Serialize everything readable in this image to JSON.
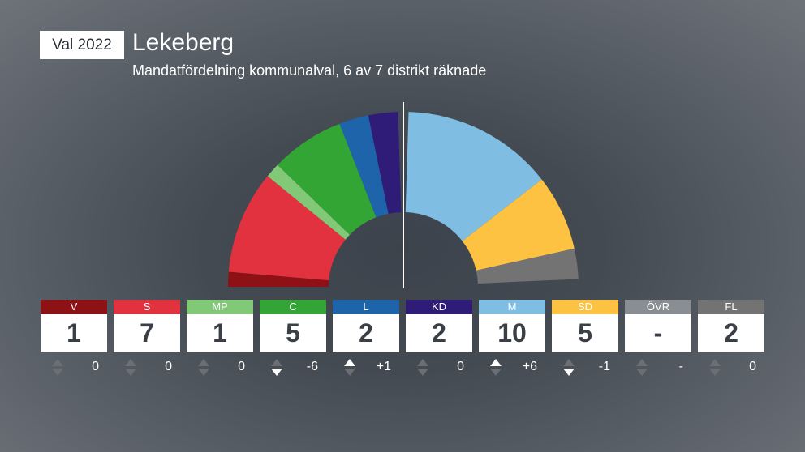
{
  "header": {
    "badge": "Val 2022",
    "title": "Lekeberg",
    "subtitle": "Mandatfördelning kommunalval, 6 av 7 distrikt räknade"
  },
  "chart_data": {
    "type": "parliament-semicircle",
    "title": "Lekeberg",
    "subtitle": "Mandatfördelning kommunalval, 6 av 7 distrikt räknade",
    "majority_line": true,
    "parties": [
      {
        "abbr": "V",
        "seats": "1",
        "seats_value": 1,
        "change": "0",
        "change_value": 0,
        "color": "#8e1116",
        "side": "left"
      },
      {
        "abbr": "S",
        "seats": "7",
        "seats_value": 7,
        "change": "0",
        "change_value": 0,
        "color": "#e3323f",
        "side": "left"
      },
      {
        "abbr": "MP",
        "seats": "1",
        "seats_value": 1,
        "change": "0",
        "change_value": 0,
        "color": "#82c977",
        "side": "left"
      },
      {
        "abbr": "C",
        "seats": "5",
        "seats_value": 5,
        "change": "-6",
        "change_value": -6,
        "color": "#33a534",
        "side": "left"
      },
      {
        "abbr": "L",
        "seats": "2",
        "seats_value": 2,
        "change": "+1",
        "change_value": 1,
        "color": "#1d64ab",
        "side": "left"
      },
      {
        "abbr": "KD",
        "seats": "2",
        "seats_value": 2,
        "change": "0",
        "change_value": 0,
        "color": "#2f1b78",
        "side": "left"
      },
      {
        "abbr": "M",
        "seats": "10",
        "seats_value": 10,
        "change": "+6",
        "change_value": 6,
        "color": "#7fbde2",
        "side": "right"
      },
      {
        "abbr": "SD",
        "seats": "5",
        "seats_value": 5,
        "change": "-1",
        "change_value": -1,
        "color": "#fec242",
        "side": "right"
      },
      {
        "abbr": "ÖVR",
        "seats": "-",
        "seats_value": 0,
        "change": "-",
        "change_value": 0,
        "color": "#8a8d91",
        "side": "right"
      },
      {
        "abbr": "FL",
        "seats": "2",
        "seats_value": 2,
        "change": "0",
        "change_value": 0,
        "color": "#737373",
        "side": "right"
      }
    ]
  }
}
